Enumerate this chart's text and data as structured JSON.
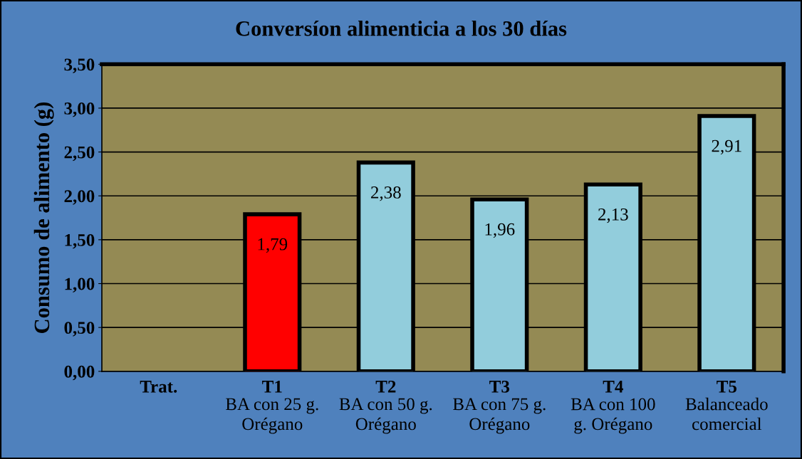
{
  "chart_data": {
    "type": "bar",
    "title": "Conversíon alimenticia a los 30 días",
    "ylabel": "Consumo de alimento (g)",
    "categories": [
      "Trat.",
      "T1\nBA con 25 g.\nOrégano",
      "T2\nBA con 50 g.\nOrégano",
      "T3\nBA con 75 g.\nOrégano",
      "T4\nBA con 100\ng. Orégano",
      "T5\nBalanceado\ncomercial"
    ],
    "values": [
      null,
      1.79,
      2.38,
      1.96,
      2.13,
      2.91
    ],
    "colors": [
      "#92cddc",
      "#ff0000",
      "#92cddc",
      "#92cddc",
      "#92cddc",
      "#92cddc"
    ],
    "value_labels": [
      null,
      "1,79",
      "2,38",
      "1,96",
      "2,13",
      "2,91"
    ],
    "ylim": [
      0,
      3.5
    ],
    "yticks": [
      {
        "value": 0,
        "label": "0,00"
      },
      {
        "value": 0.5,
        "label": "0,50"
      },
      {
        "value": 1,
        "label": "1,00"
      },
      {
        "value": 1.5,
        "label": "1,50"
      },
      {
        "value": 2,
        "label": "2,00"
      },
      {
        "value": 2.5,
        "label": "2,50"
      },
      {
        "value": 3,
        "label": "3,00"
      },
      {
        "value": 3.5,
        "label": "3,50"
      }
    ],
    "grid": "y"
  }
}
